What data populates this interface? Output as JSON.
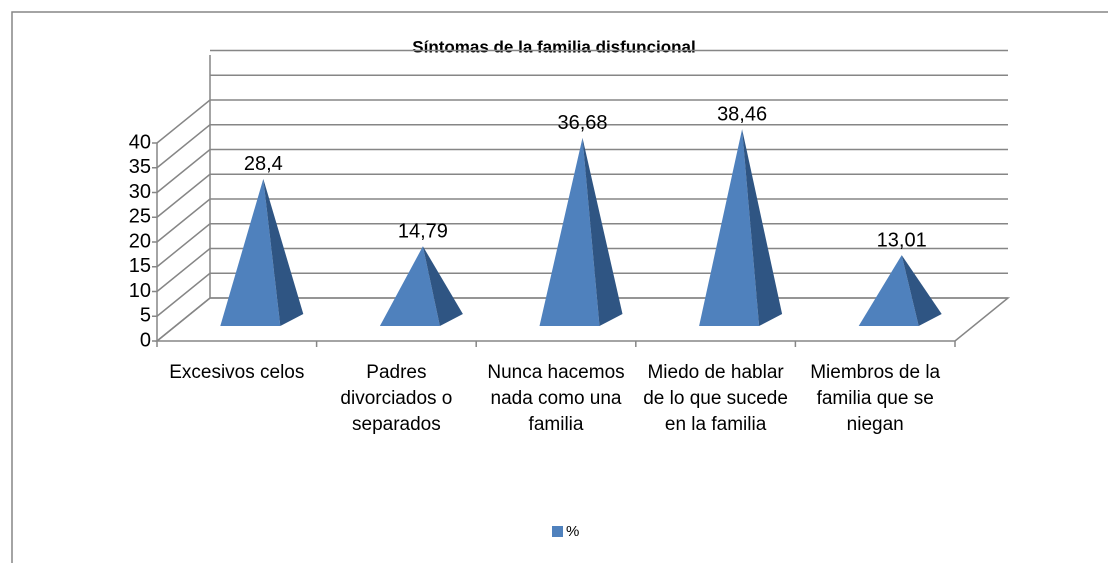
{
  "chart_data": {
    "type": "pyramid",
    "title": "Síntomas de la familia disfuncional",
    "categories": [
      "Excesivos celos",
      "Padres divorciados o separados",
      "Nunca hacemos nada como una familia",
      "Miedo de hablar de lo que sucede en la familia",
      "Miembros de la familia que se niegan"
    ],
    "series": [
      {
        "name": "%",
        "color": "#4f81bd",
        "values": [
          28.4,
          14.79,
          36.68,
          38.46,
          13.01
        ],
        "value_labels": [
          "28,4",
          "14,79",
          "36,68",
          "38,46",
          "13,01"
        ]
      }
    ],
    "ylim": [
      0,
      40
    ],
    "yticks": [
      0,
      5,
      10,
      15,
      20,
      25,
      30,
      35,
      40
    ],
    "grid": true,
    "legend": "bottom"
  }
}
